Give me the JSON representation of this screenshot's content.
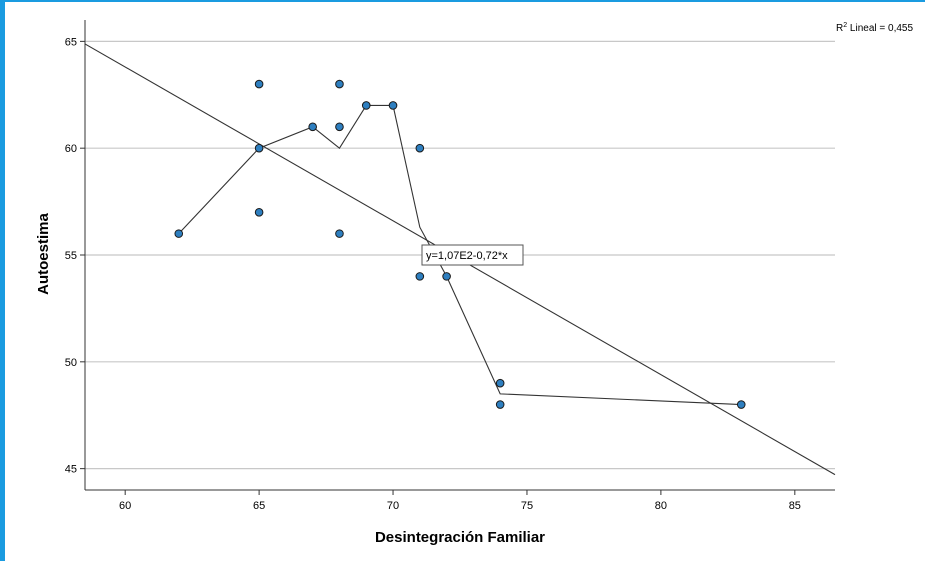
{
  "colors": {
    "frame_border": "#1a9be0",
    "point_fill": "#2e7fc0",
    "point_stroke": "#1a1a1a",
    "line": "#333333",
    "grid": "#c8c8c8"
  },
  "chart_data": {
    "type": "scatter",
    "xlabel": "Desintegración Familiar",
    "ylabel": "Autoestima",
    "xlim": [
      58.5,
      86.5
    ],
    "ylim": [
      44,
      66
    ],
    "xticks": [
      60,
      65,
      70,
      75,
      80,
      85
    ],
    "yticks": [
      45,
      50,
      55,
      60,
      65
    ],
    "grid": "horizontal",
    "points": [
      {
        "x": 62,
        "y": 56
      },
      {
        "x": 65,
        "y": 63
      },
      {
        "x": 65,
        "y": 60
      },
      {
        "x": 65,
        "y": 57
      },
      {
        "x": 67,
        "y": 61
      },
      {
        "x": 68,
        "y": 63
      },
      {
        "x": 68,
        "y": 61
      },
      {
        "x": 68,
        "y": 56
      },
      {
        "x": 69,
        "y": 62
      },
      {
        "x": 70,
        "y": 62
      },
      {
        "x": 71,
        "y": 60
      },
      {
        "x": 71,
        "y": 54
      },
      {
        "x": 72,
        "y": 54
      },
      {
        "x": 74,
        "y": 49
      },
      {
        "x": 74,
        "y": 48
      },
      {
        "x": 83,
        "y": 48
      }
    ],
    "loess_line": [
      {
        "x": 62,
        "y": 56
      },
      {
        "x": 65,
        "y": 60
      },
      {
        "x": 67,
        "y": 61
      },
      {
        "x": 68,
        "y": 60
      },
      {
        "x": 69,
        "y": 62
      },
      {
        "x": 70,
        "y": 62
      },
      {
        "x": 71,
        "y": 56.3
      },
      {
        "x": 72,
        "y": 54
      },
      {
        "x": 74,
        "y": 48.5
      },
      {
        "x": 83,
        "y": 48
      }
    ],
    "fit_line": {
      "intercept": 107,
      "slope": -0.72
    },
    "equation_label": "y=1,07E2-0,72*x",
    "equation_anchor": {
      "x": 72.5,
      "y": 55
    },
    "r2_label": {
      "prefix": "R",
      "sup": "2",
      "text": " Lineal = 0,455"
    }
  }
}
